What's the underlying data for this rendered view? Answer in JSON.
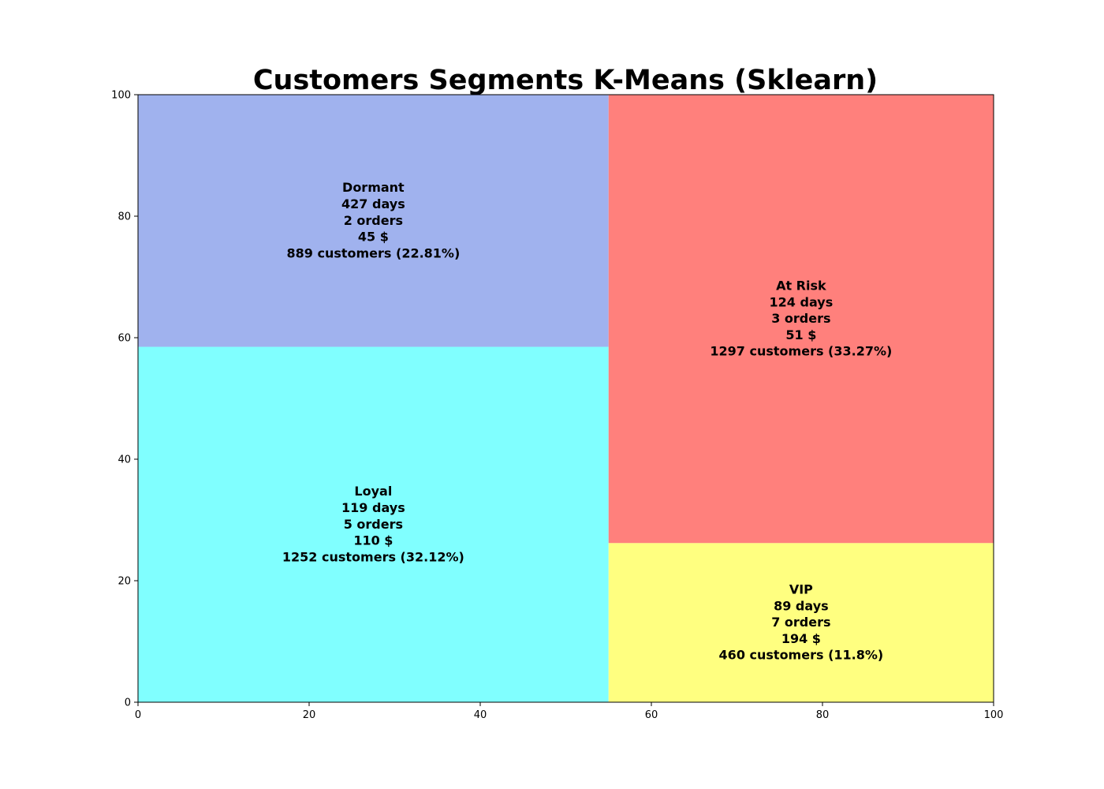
{
  "chart_data": {
    "type": "treemap",
    "title": "Customers Segments K-Means (Sklearn)",
    "xlim": [
      0,
      100
    ],
    "ylim": [
      0,
      100
    ],
    "x_ticks": [
      0,
      20,
      40,
      60,
      80,
      100
    ],
    "y_ticks": [
      0,
      20,
      40,
      60,
      80,
      100
    ],
    "grid": false,
    "segments": [
      {
        "id": "loyal",
        "x": 0,
        "y": 0,
        "dx": 55,
        "dy": 58.5,
        "color": "#80ffff",
        "lines": [
          "Loyal",
          "119 days",
          "5 orders",
          "110 $",
          "1252 customers (32.12%)"
        ]
      },
      {
        "id": "dormant",
        "x": 0,
        "y": 58.5,
        "dx": 55,
        "dy": 41.5,
        "color": "#a0b2ee",
        "lines": [
          "Dormant",
          "427 days",
          "2 orders",
          "45 $",
          "889 customers (22.81%)"
        ]
      },
      {
        "id": "vip",
        "x": 55,
        "y": 0,
        "dx": 45,
        "dy": 26.2,
        "color": "#ffff80",
        "lines": [
          "VIP",
          "89 days",
          "7 orders",
          "194 $",
          "460 customers (11.8%)"
        ]
      },
      {
        "id": "at-risk",
        "x": 55,
        "y": 26.2,
        "dx": 45,
        "dy": 73.8,
        "color": "#ff807c",
        "lines": [
          "At Risk",
          "124 days",
          "3 orders",
          "51 $",
          "1297 customers (33.27%)"
        ]
      }
    ]
  }
}
